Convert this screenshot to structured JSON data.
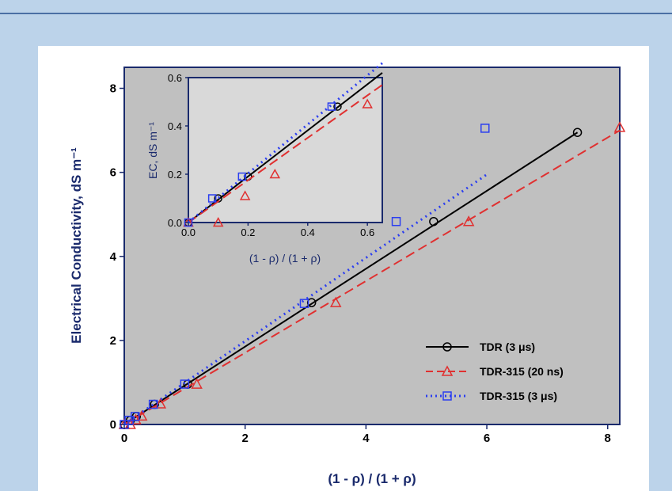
{
  "chart_data": [
    {
      "type": "scatter",
      "xlabel": "(1 - ρ) / (1 + ρ)",
      "ylabel": "Electrical Conductivity, dS m⁻¹",
      "xlim": [
        0,
        8.2
      ],
      "ylim": [
        0,
        8.5
      ],
      "xticks": [
        "0",
        "2",
        "4",
        "6",
        "8"
      ],
      "yticks": [
        "0",
        "2",
        "4",
        "6",
        "8"
      ],
      "grid": false,
      "legend_position": "bottom-right",
      "colors": {
        "background": "#c0c0c0",
        "axis": "#1a2a6c"
      },
      "series": [
        {
          "name": "TDR (3 μs)",
          "color": "#000000",
          "marker": "circle",
          "line_style": "solid",
          "points": [
            [
              0,
              0
            ],
            [
              0.1,
              0.1
            ],
            [
              0.2,
              0.19
            ],
            [
              0.5,
              0.48
            ],
            [
              1.05,
              0.96
            ],
            [
              3.1,
              2.9
            ],
            [
              5.12,
              4.83
            ],
            [
              7.5,
              6.95
            ]
          ],
          "fit_line": [
            [
              0,
              0
            ],
            [
              7.5,
              6.95
            ]
          ]
        },
        {
          "name": "TDR-315 (20 ns)",
          "color": "#e03030",
          "marker": "triangle",
          "line_style": "dashed",
          "points": [
            [
              0,
              0
            ],
            [
              0.1,
              0.0
            ],
            [
              0.19,
              0.11
            ],
            [
              0.29,
              0.2
            ],
            [
              0.6,
              0.49
            ],
            [
              1.2,
              0.96
            ],
            [
              3.5,
              2.9
            ],
            [
              5.7,
              4.83
            ],
            [
              8.2,
              7.07
            ]
          ],
          "fit_line": [
            [
              0,
              0
            ],
            [
              8.2,
              7.0
            ]
          ]
        },
        {
          "name": "TDR-315 (3 μs)",
          "color": "#2b3ef0",
          "marker": "square",
          "line_style": "dotted",
          "points": [
            [
              0,
              0
            ],
            [
              0.08,
              0.1
            ],
            [
              0.18,
              0.19
            ],
            [
              0.48,
              0.48
            ],
            [
              1.0,
              0.96
            ],
            [
              2.98,
              2.88
            ],
            [
              4.5,
              4.83
            ],
            [
              5.97,
              7.05
            ]
          ],
          "fit_line": [
            [
              0,
              0
            ],
            [
              6.0,
              5.95
            ]
          ]
        }
      ]
    },
    {
      "type": "scatter",
      "xlabel": "(1 - ρ) / (1 + ρ)",
      "ylabel": "EC, dS m⁻¹",
      "xlim": [
        0,
        0.65
      ],
      "ylim": [
        0,
        0.6
      ],
      "xticks": [
        "0.0",
        "0.2",
        "0.4",
        "0.6"
      ],
      "yticks": [
        "0.0",
        "0.2",
        "0.4",
        "0.6"
      ],
      "grid": false,
      "legend_position": "none",
      "colors": {
        "background": "#d9d9d9"
      },
      "series": [
        {
          "color": "#000000",
          "marker": "circle",
          "line_style": "solid",
          "points": [
            [
              0,
              0
            ],
            [
              0.1,
              0.1
            ],
            [
              0.2,
              0.19
            ],
            [
              0.5,
              0.48
            ]
          ],
          "fit_line": [
            [
              0,
              0
            ],
            [
              0.65,
              0.62
            ]
          ]
        },
        {
          "color": "#e03030",
          "marker": "triangle",
          "line_style": "dashed",
          "points": [
            [
              0,
              0
            ],
            [
              0.1,
              0.0
            ],
            [
              0.19,
              0.11
            ],
            [
              0.29,
              0.2
            ],
            [
              0.6,
              0.49
            ]
          ],
          "fit_line": [
            [
              0,
              0
            ],
            [
              0.65,
              0.57
            ]
          ]
        },
        {
          "color": "#2b3ef0",
          "marker": "square",
          "line_style": "dotted",
          "points": [
            [
              0,
              0
            ],
            [
              0.08,
              0.1
            ],
            [
              0.18,
              0.19
            ],
            [
              0.48,
              0.48
            ]
          ],
          "fit_line": [
            [
              0,
              0
            ],
            [
              0.65,
              0.66
            ]
          ]
        }
      ]
    }
  ]
}
